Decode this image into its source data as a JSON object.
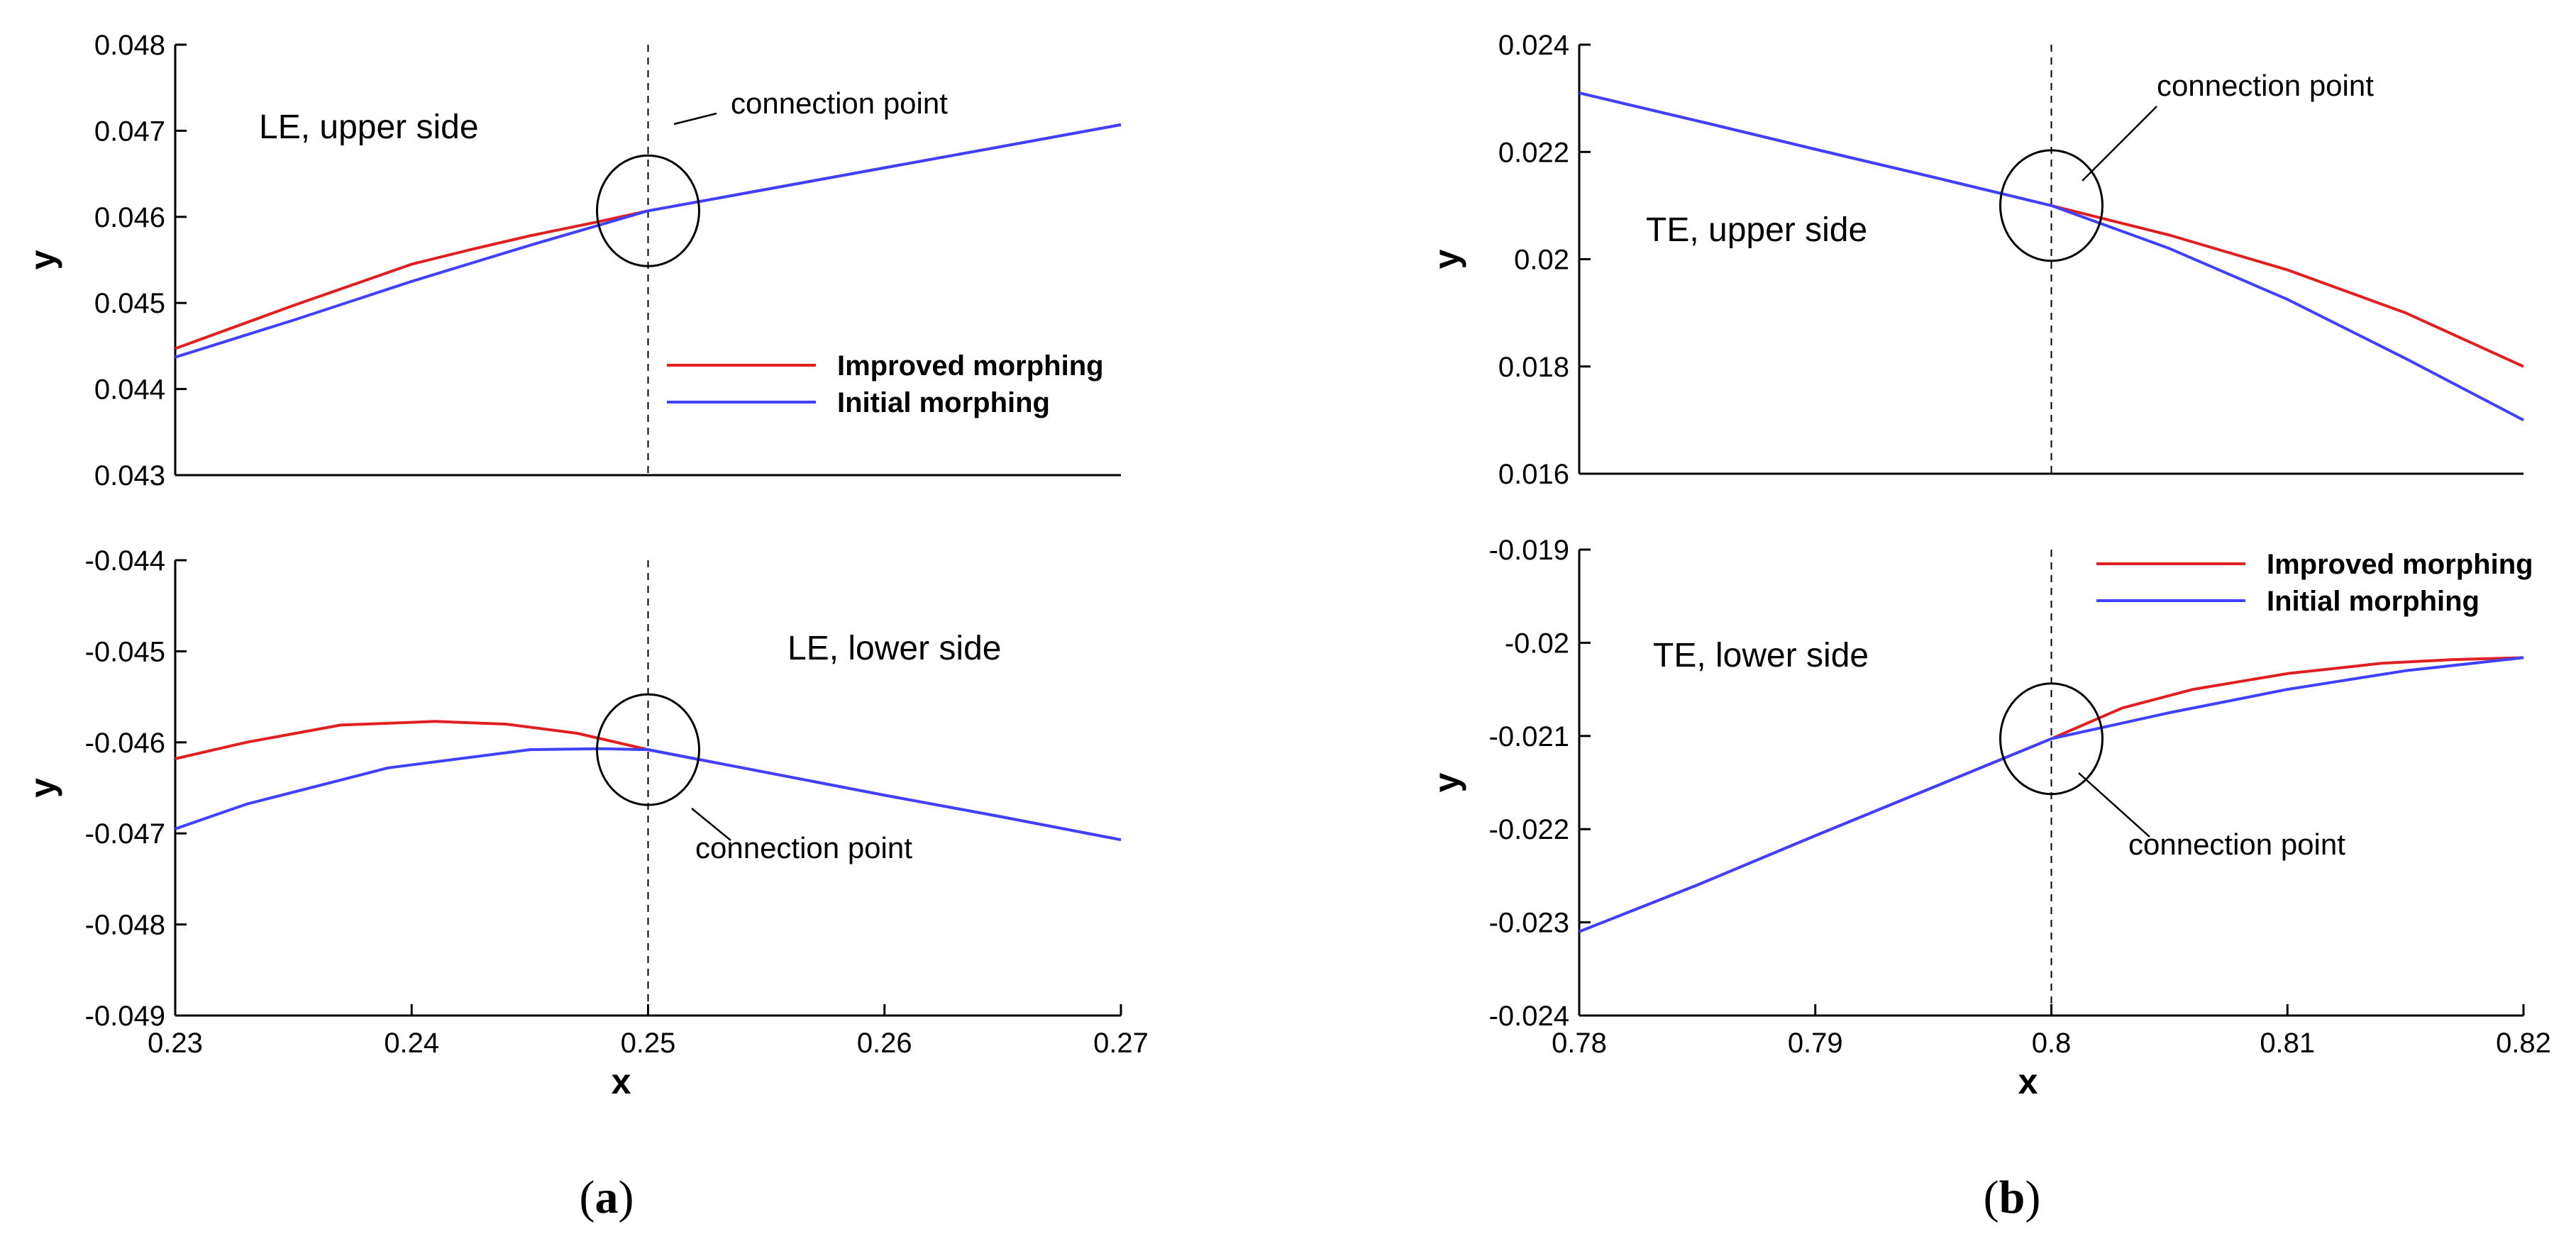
{
  "chart_data": [
    {
      "id": "a_upper",
      "type": "line",
      "title": "LE, upper side",
      "annotation": "connection point",
      "xlabel": "",
      "ylabel": "y",
      "xlim": [
        0.23,
        0.27
      ],
      "ylim": [
        0.043,
        0.048
      ],
      "xticks": [],
      "yticks": [
        "0.043",
        "0.044",
        "0.045",
        "0.046",
        "0.047",
        "0.048"
      ],
      "connection": {
        "x": 0.25,
        "y": 0.04607
      },
      "legend": [
        "Improved morphing",
        "Initial morphing"
      ],
      "series": [
        {
          "name": "Improved morphing",
          "color": "#e02020",
          "x": [
            0.23,
            0.235,
            0.24,
            0.2425,
            0.245,
            0.248,
            0.25,
            0.255,
            0.26,
            0.265,
            0.27
          ],
          "y": [
            0.04447,
            0.04497,
            0.04545,
            0.04562,
            0.04578,
            0.04595,
            0.04607,
            0.04632,
            0.04657,
            0.04682,
            0.04707
          ]
        },
        {
          "name": "Initial morphing",
          "color": "#4040ff",
          "x": [
            0.23,
            0.235,
            0.24,
            0.245,
            0.25,
            0.255,
            0.26,
            0.265,
            0.27
          ],
          "y": [
            0.04437,
            0.0448,
            0.04525,
            0.04567,
            0.04607,
            0.04632,
            0.04657,
            0.04682,
            0.04707
          ]
        }
      ]
    },
    {
      "id": "a_lower",
      "type": "line",
      "title": "LE, lower side",
      "annotation": "connection point",
      "xlabel": "x",
      "ylabel": "y",
      "xlim": [
        0.23,
        0.27
      ],
      "ylim": [
        -0.049,
        -0.044
      ],
      "xticks": [
        "0.23",
        "0.24",
        "0.25",
        "0.26",
        "0.27"
      ],
      "yticks": [
        "-0.049",
        "-0.048",
        "-0.047",
        "-0.046",
        "-0.045",
        "-0.044"
      ],
      "connection": {
        "x": 0.25,
        "y": -0.04608
      },
      "legend": [],
      "series": [
        {
          "name": "Improved morphing",
          "color": "#e02020",
          "x": [
            0.23,
            0.233,
            0.237,
            0.241,
            0.244,
            0.247,
            0.25,
            0.255,
            0.26,
            0.265,
            0.27
          ],
          "y": [
            -0.04618,
            -0.046,
            -0.04581,
            -0.04577,
            -0.0458,
            -0.0459,
            -0.04608,
            -0.04633,
            -0.04658,
            -0.04682,
            -0.04707
          ]
        },
        {
          "name": "Initial morphing",
          "color": "#4040ff",
          "x": [
            0.23,
            0.233,
            0.239,
            0.245,
            0.248,
            0.25,
            0.255,
            0.26,
            0.265,
            0.27
          ],
          "y": [
            -0.04695,
            -0.04668,
            -0.04628,
            -0.04608,
            -0.04607,
            -0.04608,
            -0.04633,
            -0.04658,
            -0.04682,
            -0.04707
          ]
        }
      ]
    },
    {
      "id": "b_upper",
      "type": "line",
      "title": "TE, upper side",
      "annotation": "connection point",
      "xlabel": "",
      "ylabel": "y",
      "xlim": [
        0.78,
        0.82
      ],
      "ylim": [
        0.016,
        0.024
      ],
      "xticks": [],
      "yticks": [
        "0.016",
        "0.018",
        "0.02",
        "0.022",
        "0.024"
      ],
      "connection": {
        "x": 0.8,
        "y": 0.021
      },
      "legend": [],
      "series": [
        {
          "name": "Improved morphing",
          "color": "#e02020",
          "x": [
            0.78,
            0.785,
            0.79,
            0.795,
            0.8,
            0.805,
            0.81,
            0.815,
            0.82
          ],
          "y": [
            0.0231,
            0.02258,
            0.02205,
            0.02153,
            0.021,
            0.02045,
            0.0198,
            0.019,
            0.018
          ]
        },
        {
          "name": "Initial morphing",
          "color": "#4040ff",
          "x": [
            0.78,
            0.785,
            0.79,
            0.795,
            0.8,
            0.805,
            0.81,
            0.815,
            0.82
          ],
          "y": [
            0.0231,
            0.02258,
            0.02205,
            0.02153,
            0.021,
            0.0202,
            0.01925,
            0.01815,
            0.017
          ]
        }
      ]
    },
    {
      "id": "b_lower",
      "type": "line",
      "title": "TE, lower side",
      "annotation": "connection point",
      "xlabel": "x",
      "ylabel": "y",
      "xlim": [
        0.78,
        0.82
      ],
      "ylim": [
        -0.024,
        -0.019
      ],
      "xticks": [
        "0.78",
        "0.79",
        "0.8",
        "0.81",
        "0.82"
      ],
      "yticks": [
        "-0.024",
        "-0.023",
        "-0.022",
        "-0.021",
        "-0.02",
        "-0.019"
      ],
      "connection": {
        "x": 0.8,
        "y": -0.02103
      },
      "legend": [
        "Improved morphing",
        "Initial morphing"
      ],
      "series": [
        {
          "name": "Improved morphing",
          "color": "#e02020",
          "x": [
            0.78,
            0.785,
            0.79,
            0.795,
            0.8,
            0.803,
            0.806,
            0.81,
            0.814,
            0.817,
            0.82
          ],
          "y": [
            -0.0231,
            -0.0226,
            -0.02207,
            -0.02155,
            -0.02103,
            -0.0207,
            -0.0205,
            -0.02033,
            -0.02022,
            -0.02018,
            -0.02016
          ]
        },
        {
          "name": "Initial morphing",
          "color": "#4040ff",
          "x": [
            0.78,
            0.785,
            0.79,
            0.795,
            0.8,
            0.805,
            0.81,
            0.815,
            0.82
          ],
          "y": [
            -0.0231,
            -0.0226,
            -0.02207,
            -0.02155,
            -0.02103,
            -0.02075,
            -0.0205,
            -0.0203,
            -0.02016
          ]
        }
      ]
    }
  ],
  "captions": {
    "a": {
      "open": "(",
      "letter": "a",
      "close": ")"
    },
    "b": {
      "open": "(",
      "letter": "b",
      "close": ")"
    }
  }
}
